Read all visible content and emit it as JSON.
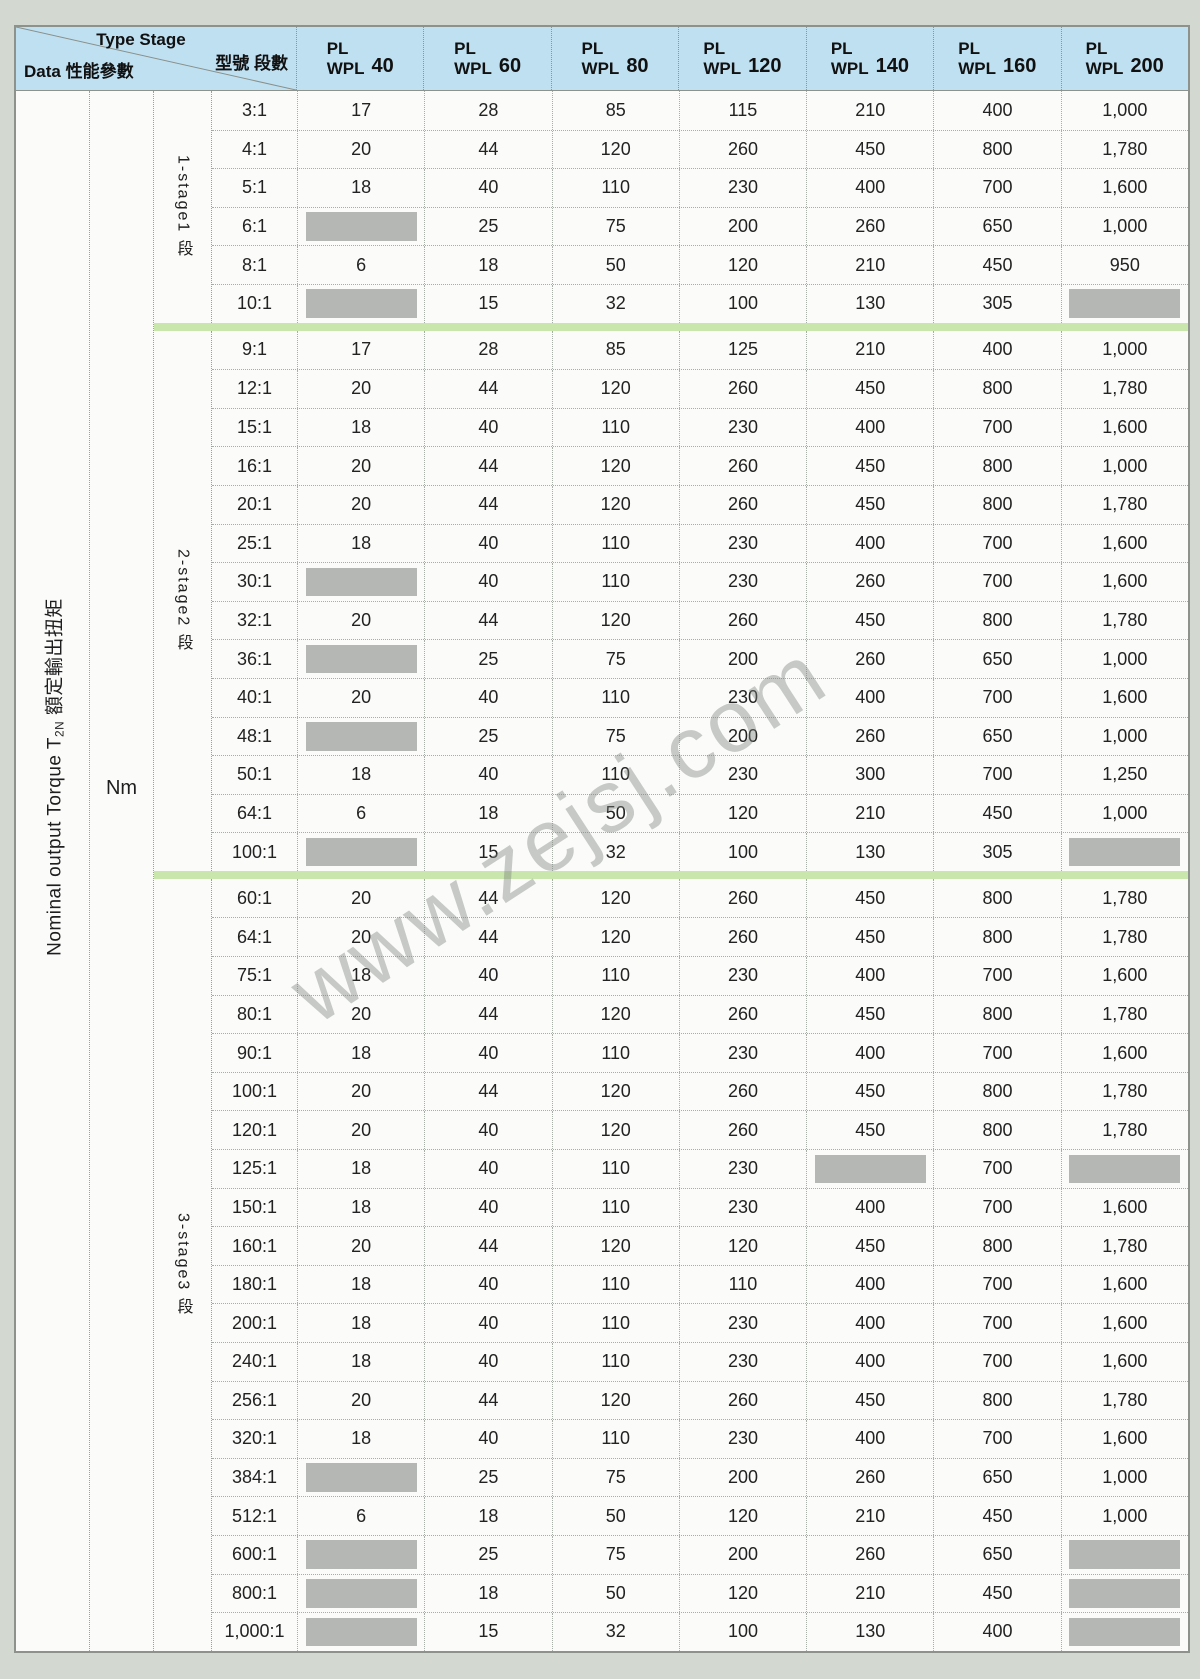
{
  "header": {
    "corner": {
      "type_stage": "Type Stage",
      "type_stage_cjk": "型號 段數",
      "data_label": "Data 性能參數"
    },
    "models": [
      "PL",
      "WPL"
    ],
    "sizes": [
      "40",
      "60",
      "80",
      "120",
      "140",
      "160",
      "200"
    ]
  },
  "left_axis": {
    "label_prefix": "Nominal output Torque T",
    "label_sub": "2N",
    "label_cjk": " 額定輸出扭矩",
    "unit": "Nm"
  },
  "watermark": {
    "text": "www.zejsj.com"
  },
  "colors": {
    "header_bg": "#bfe0f1",
    "separator_green": "#c9e6ad",
    "blocked_cell_gray": "#b4b7b4",
    "page_bg": "#d3d8d1"
  },
  "stages": [
    {
      "label": "1-stage1 段",
      "rows": [
        {
          "ratio": "3:1",
          "values": [
            "17",
            "28",
            "85",
            "115",
            "210",
            "400",
            "1,000"
          ]
        },
        {
          "ratio": "4:1",
          "values": [
            "20",
            "44",
            "120",
            "260",
            "450",
            "800",
            "1,780"
          ]
        },
        {
          "ratio": "5:1",
          "values": [
            "18",
            "40",
            "110",
            "230",
            "400",
            "700",
            "1,600"
          ]
        },
        {
          "ratio": "6:1",
          "values": [
            null,
            "25",
            "75",
            "200",
            "260",
            "650",
            "1,000"
          ]
        },
        {
          "ratio": "8:1",
          "values": [
            "6",
            "18",
            "50",
            "120",
            "210",
            "450",
            "950"
          ]
        },
        {
          "ratio": "10:1",
          "values": [
            null,
            "15",
            "32",
            "100",
            "130",
            "305",
            null
          ]
        }
      ]
    },
    {
      "label": "2-stage2 段",
      "rows": [
        {
          "ratio": "9:1",
          "values": [
            "17",
            "28",
            "85",
            "125",
            "210",
            "400",
            "1,000"
          ]
        },
        {
          "ratio": "12:1",
          "values": [
            "20",
            "44",
            "120",
            "260",
            "450",
            "800",
            "1,780"
          ]
        },
        {
          "ratio": "15:1",
          "values": [
            "18",
            "40",
            "110",
            "230",
            "400",
            "700",
            "1,600"
          ]
        },
        {
          "ratio": "16:1",
          "values": [
            "20",
            "44",
            "120",
            "260",
            "450",
            "800",
            "1,000"
          ]
        },
        {
          "ratio": "20:1",
          "values": [
            "20",
            "44",
            "120",
            "260",
            "450",
            "800",
            "1,780"
          ]
        },
        {
          "ratio": "25:1",
          "values": [
            "18",
            "40",
            "110",
            "230",
            "400",
            "700",
            "1,600"
          ]
        },
        {
          "ratio": "30:1",
          "values": [
            null,
            "40",
            "110",
            "230",
            "260",
            "700",
            "1,600"
          ]
        },
        {
          "ratio": "32:1",
          "values": [
            "20",
            "44",
            "120",
            "260",
            "450",
            "800",
            "1,780"
          ]
        },
        {
          "ratio": "36:1",
          "values": [
            null,
            "25",
            "75",
            "200",
            "260",
            "650",
            "1,000"
          ]
        },
        {
          "ratio": "40:1",
          "values": [
            "20",
            "40",
            "110",
            "230",
            "400",
            "700",
            "1,600"
          ]
        },
        {
          "ratio": "48:1",
          "values": [
            null,
            "25",
            "75",
            "200",
            "260",
            "650",
            "1,000"
          ]
        },
        {
          "ratio": "50:1",
          "values": [
            "18",
            "40",
            "110",
            "230",
            "300",
            "700",
            "1,250"
          ]
        },
        {
          "ratio": "64:1",
          "values": [
            "6",
            "18",
            "50",
            "120",
            "210",
            "450",
            "1,000"
          ]
        },
        {
          "ratio": "100:1",
          "values": [
            null,
            "15",
            "32",
            "100",
            "130",
            "305",
            null
          ]
        }
      ]
    },
    {
      "label": "3-stage3 段",
      "rows": [
        {
          "ratio": "60:1",
          "values": [
            "20",
            "44",
            "120",
            "260",
            "450",
            "800",
            "1,780"
          ]
        },
        {
          "ratio": "64:1",
          "values": [
            "20",
            "44",
            "120",
            "260",
            "450",
            "800",
            "1,780"
          ]
        },
        {
          "ratio": "75:1",
          "values": [
            "18",
            "40",
            "110",
            "230",
            "400",
            "700",
            "1,600"
          ]
        },
        {
          "ratio": "80:1",
          "values": [
            "20",
            "44",
            "120",
            "260",
            "450",
            "800",
            "1,780"
          ]
        },
        {
          "ratio": "90:1",
          "values": [
            "18",
            "40",
            "110",
            "230",
            "400",
            "700",
            "1,600"
          ]
        },
        {
          "ratio": "100:1",
          "values": [
            "20",
            "44",
            "120",
            "260",
            "450",
            "800",
            "1,780"
          ]
        },
        {
          "ratio": "120:1",
          "values": [
            "20",
            "40",
            "120",
            "260",
            "450",
            "800",
            "1,780"
          ]
        },
        {
          "ratio": "125:1",
          "values": [
            "18",
            "40",
            "110",
            "230",
            null,
            "700",
            null
          ]
        },
        {
          "ratio": "150:1",
          "values": [
            "18",
            "40",
            "110",
            "230",
            "400",
            "700",
            "1,600"
          ]
        },
        {
          "ratio": "160:1",
          "values": [
            "20",
            "44",
            "120",
            "120",
            "450",
            "800",
            "1,780"
          ]
        },
        {
          "ratio": "180:1",
          "values": [
            "18",
            "40",
            "110",
            "110",
            "400",
            "700",
            "1,600"
          ]
        },
        {
          "ratio": "200:1",
          "values": [
            "18",
            "40",
            "110",
            "230",
            "400",
            "700",
            "1,600"
          ]
        },
        {
          "ratio": "240:1",
          "values": [
            "18",
            "40",
            "110",
            "230",
            "400",
            "700",
            "1,600"
          ]
        },
        {
          "ratio": "256:1",
          "values": [
            "20",
            "44",
            "120",
            "260",
            "450",
            "800",
            "1,780"
          ]
        },
        {
          "ratio": "320:1",
          "values": [
            "18",
            "40",
            "110",
            "230",
            "400",
            "700",
            "1,600"
          ]
        },
        {
          "ratio": "384:1",
          "values": [
            null,
            "25",
            "75",
            "200",
            "260",
            "650",
            "1,000"
          ]
        },
        {
          "ratio": "512:1",
          "values": [
            "6",
            "18",
            "50",
            "120",
            "210",
            "450",
            "1,000"
          ]
        },
        {
          "ratio": "600:1",
          "values": [
            null,
            "25",
            "75",
            "200",
            "260",
            "650",
            null
          ]
        },
        {
          "ratio": "800:1",
          "values": [
            null,
            "18",
            "50",
            "120",
            "210",
            "450",
            null
          ]
        },
        {
          "ratio": "1,000:1",
          "values": [
            null,
            "15",
            "32",
            "100",
            "130",
            "400",
            null
          ]
        }
      ]
    }
  ]
}
